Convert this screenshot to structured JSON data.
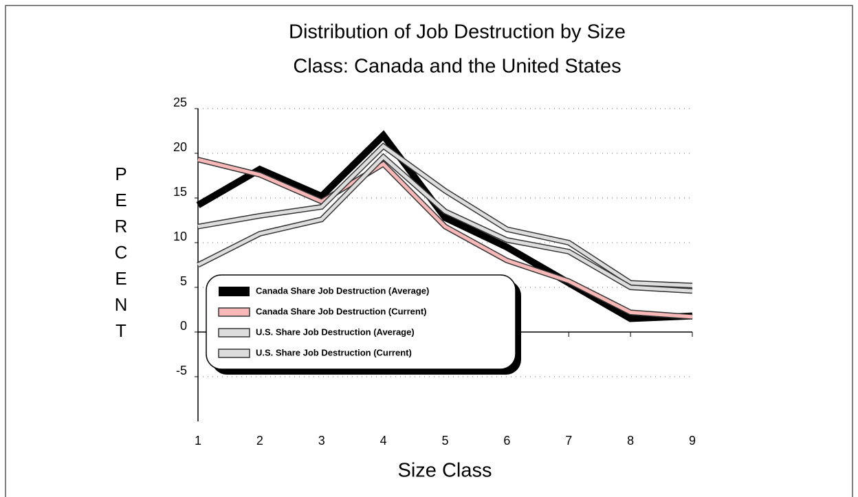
{
  "chart_data": {
    "type": "line",
    "title": [
      "Distribution of Job Destruction by Size",
      "Class: Canada and the United States"
    ],
    "x_label": "Size Class",
    "y_label": "PERCENT",
    "categories": [
      "1",
      "2",
      "3",
      "4",
      "5",
      "6",
      "7",
      "8",
      "9"
    ],
    "series": [
      {
        "name": "Canada Share Job Destruction (Average)",
        "color": "#000000",
        "values": [
          14.2,
          18.2,
          15.2,
          22,
          12.8,
          9.5,
          5.5,
          1.5,
          1.8
        ]
      },
      {
        "name": "Canada Share Job Destruction (Current)",
        "color": "#f9b8b8",
        "values": [
          19.3,
          17.6,
          14.6,
          18.8,
          11.8,
          8,
          5.7,
          2.2,
          1.7
        ]
      },
      {
        "name": "U.S. Share Job Destruction (Average)",
        "color": "#dddddd",
        "values": [
          11.8,
          13,
          14,
          20.8,
          15.8,
          11.5,
          10,
          5.5,
          5.2
        ]
      },
      {
        "name": "U.S. Share Job Destruction (Current)",
        "color": "#dddddd",
        "values": [
          7.5,
          11,
          12.6,
          19.6,
          13.5,
          10.3,
          9,
          5,
          4.6
        ]
      }
    ],
    "ylim": [
      -10,
      25
    ],
    "yticks": [
      -5,
      0,
      5,
      10,
      15,
      20,
      25
    ],
    "grid": true,
    "legend": "bottom-left"
  }
}
